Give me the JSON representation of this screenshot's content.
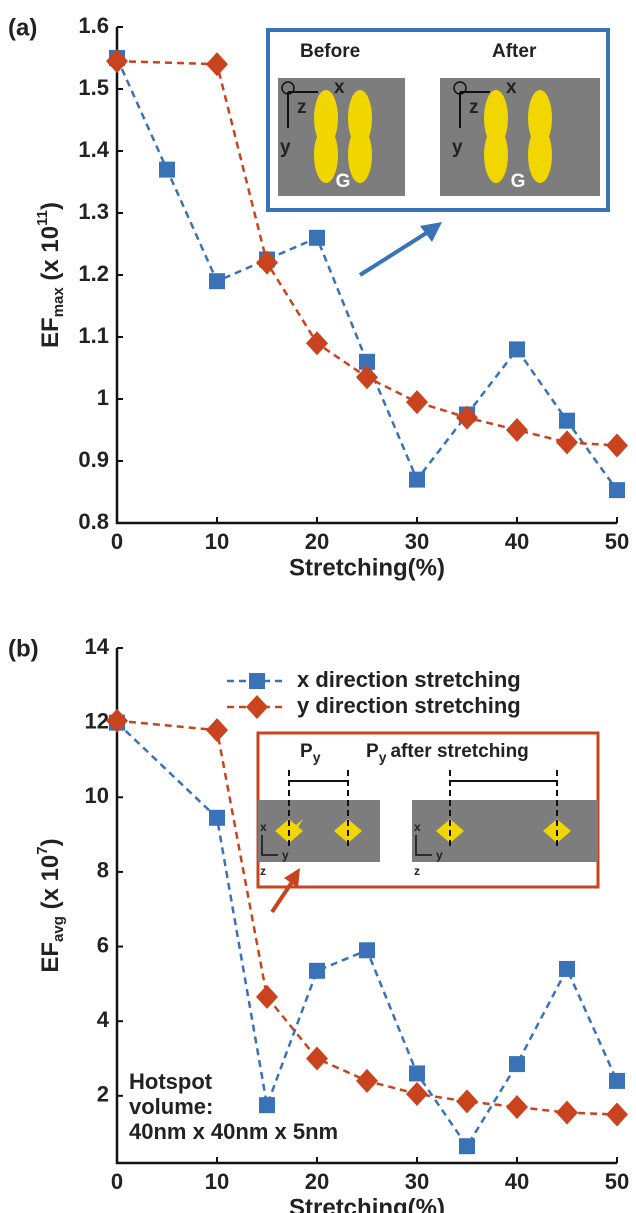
{
  "chart_data": [
    {
      "type": "line",
      "panel": "(a)",
      "xlabel": "Stretching(%)",
      "ylabel": [
        {
          "text": "EF"
        },
        {
          "text": "max",
          "style": "sub"
        },
        {
          "text": " (x 10"
        },
        {
          "text": "11",
          "style": "sup"
        },
        {
          "text": ")"
        }
      ],
      "xlim": [
        0,
        50
      ],
      "xticks": [
        0,
        10,
        20,
        30,
        40,
        50
      ],
      "ylim": [
        0.8,
        1.6
      ],
      "yticks": [
        0.8,
        0.9,
        1,
        1.1,
        1.2,
        1.3,
        1.4,
        1.5,
        1.6
      ],
      "series": [
        {
          "color": "#3a72b8",
          "marker": "square",
          "x": [
            0,
            5,
            10,
            15,
            20,
            25,
            30,
            35,
            40,
            45,
            50
          ],
          "values": [
            1.55,
            1.37,
            1.19,
            1.225,
            1.26,
            1.06,
            0.87,
            0.975,
            1.08,
            0.965,
            0.853
          ]
        },
        {
          "color": "#c9431e",
          "marker": "diamond",
          "x": [
            0,
            10,
            15,
            20,
            25,
            30,
            35,
            40,
            45,
            50
          ],
          "values": [
            1.545,
            1.54,
            1.22,
            1.09,
            1.035,
            0.995,
            0.97,
            0.95,
            0.93,
            0.925
          ]
        }
      ],
      "inset_texts": {
        "before": "Before",
        "after": "After",
        "x": "x",
        "y": "y",
        "z": "z",
        "gap": "G"
      }
    },
    {
      "type": "line",
      "panel": "(b)",
      "xlabel": "Stretching(%)",
      "ylabel": [
        {
          "text": "EF"
        },
        {
          "text": "avg",
          "style": "sub"
        },
        {
          "text": " (x 10"
        },
        {
          "text": "7",
          "style": "sup"
        },
        {
          "text": ")"
        }
      ],
      "xlim": [
        0,
        50
      ],
      "xticks": [
        0,
        10,
        20,
        30,
        40,
        50
      ],
      "ylim": [
        0.2,
        14
      ],
      "yticks": [
        2,
        4,
        6,
        8,
        10,
        12,
        14
      ],
      "legend": "upper right",
      "series": [
        {
          "name": "x direction stretching",
          "color": "#3a72b8",
          "marker": "square",
          "x": [
            0,
            10,
            15,
            20,
            25,
            30,
            35,
            40,
            45,
            50
          ],
          "values": [
            12.0,
            9.45,
            1.75,
            5.35,
            5.9,
            2.6,
            0.65,
            2.85,
            5.4,
            2.4
          ]
        },
        {
          "name": "y direction stretching",
          "color": "#c9431e",
          "marker": "diamond",
          "x": [
            0,
            10,
            15,
            20,
            25,
            30,
            35,
            40,
            45,
            50
          ],
          "values": [
            12.05,
            11.8,
            4.65,
            3.0,
            2.4,
            2.05,
            1.85,
            1.7,
            1.55,
            1.5
          ]
        }
      ],
      "annotation": [
        "Hotspot",
        "volume:",
        "40nm x 40nm x 5nm"
      ],
      "inset_texts": {
        "p": "P",
        "p_sub": "y",
        "after": "after stretching",
        "x": "x",
        "y": "y",
        "z": "z"
      }
    }
  ]
}
